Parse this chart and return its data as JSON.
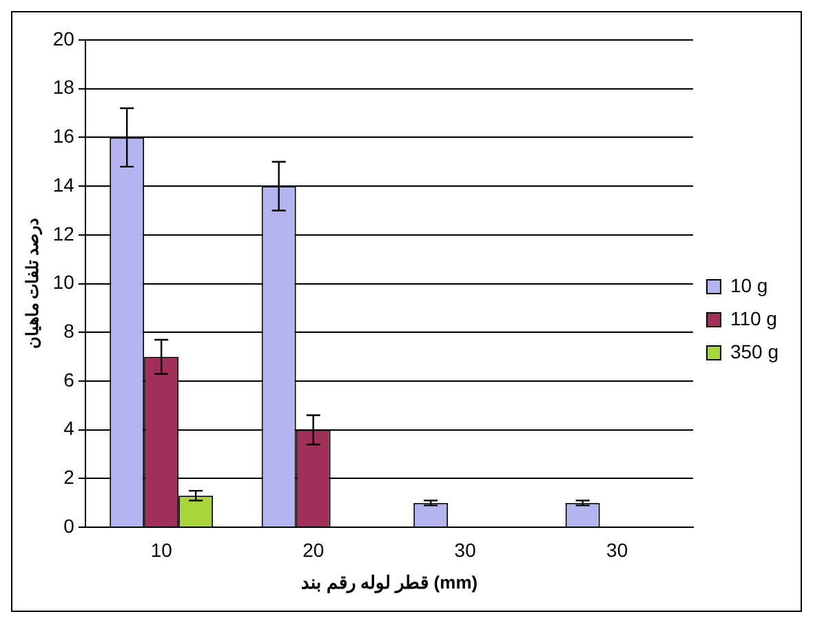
{
  "chart_data": {
    "type": "bar",
    "xlabel": "قطر لوله رقم بند (mm)",
    "ylabel": "درصد تلفات ماهیان",
    "categories": [
      "10",
      "20",
      "30",
      "30"
    ],
    "series": [
      {
        "name": "10 g",
        "color": "#b4b4f0",
        "values": [
          16,
          14,
          1,
          1
        ],
        "errors": [
          1.2,
          1,
          0.1,
          0.1
        ]
      },
      {
        "name": "110 g",
        "color": "#a0305a",
        "values": [
          7,
          4,
          0,
          0
        ],
        "errors": [
          0.7,
          0.6,
          null,
          null
        ]
      },
      {
        "name": "350 g",
        "color": "#a8d43c",
        "values": [
          1.3,
          0,
          0,
          0
        ],
        "errors": [
          0.2,
          null,
          null,
          null
        ]
      }
    ],
    "ylim": [
      0,
      20
    ],
    "yticks": [
      0,
      2,
      4,
      6,
      8,
      10,
      12,
      14,
      16,
      18,
      20
    ],
    "grid": "y",
    "legend": "right"
  }
}
